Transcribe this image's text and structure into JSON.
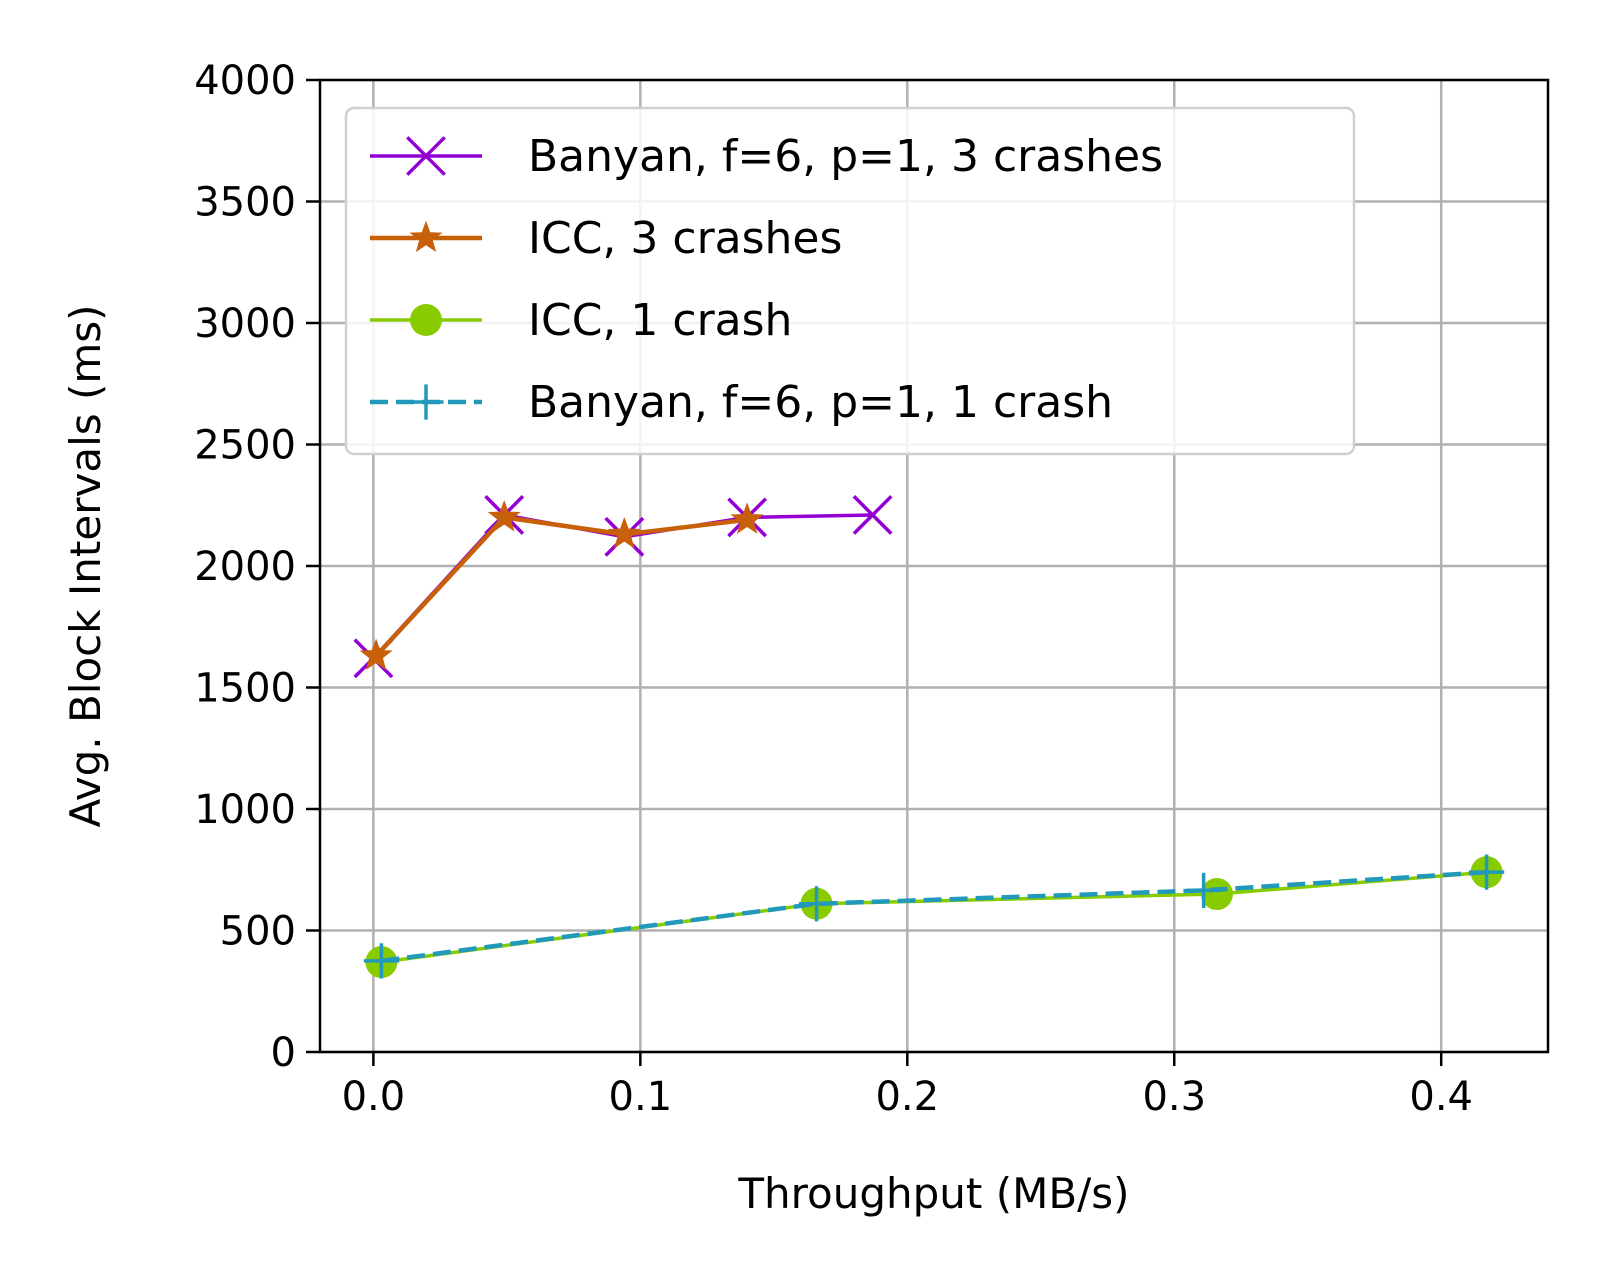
{
  "chart_data": {
    "type": "line",
    "xlabel": "Throughput (MB/s)",
    "ylabel": "Avg. Block Intervals (ms)",
    "xlim": [
      -0.02,
      0.44
    ],
    "ylim": [
      0,
      4000
    ],
    "xticks": [
      0.0,
      0.1,
      0.2,
      0.3,
      0.4
    ],
    "xtick_labels": [
      "0.0",
      "0.1",
      "0.2",
      "0.3",
      "0.4"
    ],
    "yticks": [
      0,
      500,
      1000,
      1500,
      2000,
      2500,
      3000,
      3500,
      4000
    ],
    "ytick_labels": [
      "0",
      "500",
      "1000",
      "1500",
      "2000",
      "2500",
      "3000",
      "3500",
      "4000"
    ],
    "grid": true,
    "legend_position": "upper-left",
    "series": [
      {
        "name": "Banyan, f=6, p=1, 3 crashes",
        "color": "#9400d3",
        "marker": "x",
        "dash": "solid",
        "x": [
          0.0,
          0.049,
          0.094,
          0.14,
          0.187
        ],
        "y": [
          1620,
          2210,
          2120,
          2200,
          2210
        ]
      },
      {
        "name": "ICC, 3 crashes",
        "color": "#c8600a",
        "marker": "star",
        "dash": "solid",
        "x": [
          0.001,
          0.049,
          0.094,
          0.14
        ],
        "y": [
          1630,
          2200,
          2130,
          2190
        ]
      },
      {
        "name": "ICC, 1 crash",
        "color": "#88cc00",
        "marker": "circle",
        "dash": "solid",
        "x": [
          0.003,
          0.166,
          0.316,
          0.417
        ],
        "y": [
          370,
          610,
          650,
          740
        ]
      },
      {
        "name": "Banyan, f=6, p=1, 1 crash",
        "color": "#2299bb",
        "marker": "plus",
        "dash": "dashed",
        "x": [
          0.003,
          0.166,
          0.311,
          0.417
        ],
        "y": [
          375,
          610,
          665,
          740
        ]
      }
    ]
  }
}
